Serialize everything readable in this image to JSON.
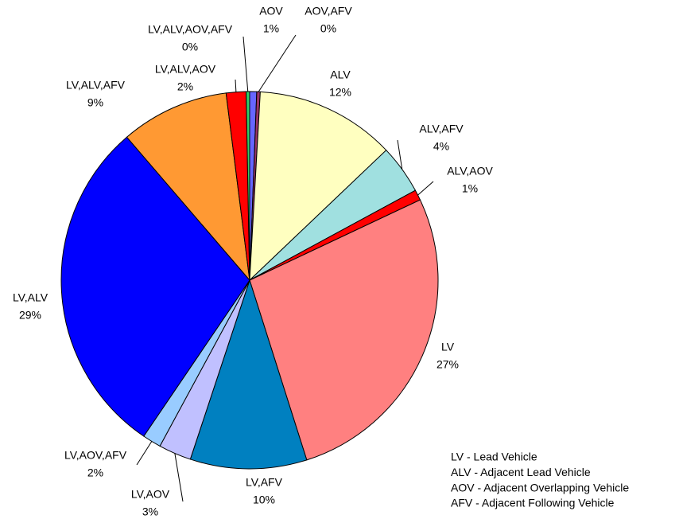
{
  "chart_data": {
    "type": "pie",
    "categories": [
      "AOV",
      "AOV,AFV",
      "ALV",
      "ALV,AFV",
      "ALV,AOV",
      "LV",
      "LV,AFV",
      "LV,AOV",
      "LV,AOV,AFV",
      "LV,ALV",
      "LV,ALV,AFV",
      "LV,ALV,AOV",
      "LV,ALV,AOV,AFV"
    ],
    "values": [
      0.6,
      0.3,
      12,
      4.2,
      0.9,
      27.1,
      10,
      2.8,
      1.6,
      29.2,
      9.3,
      1.7,
      0.3
    ],
    "value_labels": [
      "1%",
      "0%",
      "12%",
      "4%",
      "1%",
      "27%",
      "10%",
      "3%",
      "2%",
      "29%",
      "9%",
      "2%",
      "0%"
    ],
    "colors": [
      "#6666ff",
      "#993366",
      "#ffffc0",
      "#a0e0e0",
      "#ff0000",
      "#ff8080",
      "#0080c0",
      "#c0c0ff",
      "#99ccff",
      "#0000ff",
      "#ff9933",
      "#ff0000",
      "#33cc66"
    ],
    "annotations": [
      "LV - Lead Vehicle",
      "ALV - Adjacent Lead Vehicle",
      "AOV - Adjacent Overlapping Vehicle",
      "AFV - Adjacent Following Vehicle"
    ]
  }
}
